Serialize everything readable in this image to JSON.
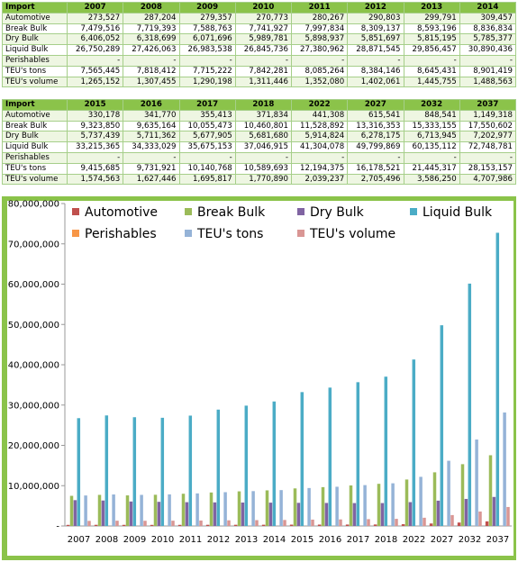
{
  "tables": [
    {
      "header": "Import",
      "years": [
        "2007",
        "2008",
        "2009",
        "2010",
        "2011",
        "2012",
        "2013",
        "2014"
      ],
      "rows": [
        {
          "label": "Automotive",
          "values": [
            "273,527",
            "287,204",
            "279,357",
            "270,773",
            "280,267",
            "290,803",
            "299,791",
            "309,457"
          ]
        },
        {
          "label": "Break Bulk",
          "values": [
            "7,479,516",
            "7,719,393",
            "7,588,763",
            "7,741,927",
            "7,997,834",
            "8,309,137",
            "8,593,196",
            "8,836,834"
          ]
        },
        {
          "label": "Dry Bulk",
          "values": [
            "6,406,052",
            "6,318,699",
            "6,071,696",
            "5,989,781",
            "5,898,937",
            "5,851,697",
            "5,815,195",
            "5,785,377"
          ]
        },
        {
          "label": "Liquid Bulk",
          "values": [
            "26,750,289",
            "27,426,063",
            "26,983,538",
            "26,845,736",
            "27,380,962",
            "28,871,545",
            "29,856,457",
            "30,890,436"
          ]
        },
        {
          "label": "Perishables",
          "values": [
            "-",
            "-",
            "-",
            "-",
            "-",
            "-",
            "-",
            "-"
          ]
        },
        {
          "label": "TEU's tons",
          "values": [
            "7,565,445",
            "7,818,412",
            "7,715,222",
            "7,842,281",
            "8,085,264",
            "8,384,146",
            "8,645,431",
            "8,901,419"
          ]
        },
        {
          "label": "TEU's volume",
          "values": [
            "1,265,152",
            "1,307,455",
            "1,290,198",
            "1,311,446",
            "1,352,080",
            "1,402,061",
            "1,445,755",
            "1,488,563"
          ]
        }
      ]
    },
    {
      "header": "Import",
      "years": [
        "2015",
        "2016",
        "2017",
        "2018",
        "2022",
        "2027",
        "2032",
        "2037"
      ],
      "rows": [
        {
          "label": "Automotive",
          "values": [
            "330,178",
            "341,770",
            "355,413",
            "371,834",
            "441,308",
            "615,541",
            "848,541",
            "1,149,318"
          ]
        },
        {
          "label": "Break Bulk",
          "values": [
            "9,323,850",
            "9,635,164",
            "10,055,473",
            "10,460,801",
            "11,528,892",
            "13,316,353",
            "15,333,155",
            "17,550,602"
          ]
        },
        {
          "label": "Dry Bulk",
          "values": [
            "5,737,439",
            "5,711,362",
            "5,677,905",
            "5,681,680",
            "5,914,824",
            "6,278,175",
            "6,713,945",
            "7,202,977"
          ]
        },
        {
          "label": "Liquid Bulk",
          "values": [
            "33,215,365",
            "34,333,029",
            "35,675,153",
            "37,046,915",
            "41,304,078",
            "49,799,869",
            "60,135,112",
            "72,748,781"
          ]
        },
        {
          "label": "Perishables",
          "values": [
            "-",
            "-",
            "-",
            "-",
            "-",
            "-",
            "-",
            "-"
          ]
        },
        {
          "label": "TEU's tons",
          "values": [
            "9,415,685",
            "9,731,921",
            "10,140,768",
            "10,589,693",
            "12,194,375",
            "16,178,521",
            "21,445,317",
            "28,153,157"
          ]
        },
        {
          "label": "TEU's volume",
          "values": [
            "1,574,563",
            "1,627,446",
            "1,695,817",
            "1,770,890",
            "2,039,237",
            "2,705,496",
            "3,586,250",
            "4,707,986"
          ]
        }
      ]
    }
  ],
  "chart_data": {
    "type": "bar",
    "categories": [
      "2007",
      "2008",
      "2009",
      "2010",
      "2011",
      "2012",
      "2013",
      "2014",
      "2015",
      "2016",
      "2017",
      "2018",
      "2022",
      "2027",
      "2032",
      "2037"
    ],
    "ylim": [
      0,
      80000000
    ],
    "yticks": [
      0,
      10000000,
      20000000,
      30000000,
      40000000,
      50000000,
      60000000,
      70000000,
      80000000
    ],
    "ytick_labels": [
      "-",
      "10,000,000",
      "20,000,000",
      "30,000,000",
      "40,000,000",
      "50,000,000",
      "60,000,000",
      "70,000,000",
      "80,000,000"
    ],
    "legend_position": "top",
    "series": [
      {
        "name": "Automotive",
        "color": "#c0504d",
        "values": [
          273527,
          287204,
          279357,
          270773,
          280267,
          290803,
          299791,
          309457,
          330178,
          341770,
          355413,
          371834,
          441308,
          615541,
          848541,
          1149318
        ]
      },
      {
        "name": "Break Bulk",
        "color": "#9bbb59",
        "values": [
          7479516,
          7719393,
          7588763,
          7741927,
          7997834,
          8309137,
          8593196,
          8836834,
          9323850,
          9635164,
          10055473,
          10460801,
          11528892,
          13316353,
          15333155,
          17550602
        ]
      },
      {
        "name": "Dry Bulk",
        "color": "#8064a2",
        "values": [
          6406052,
          6318699,
          6071696,
          5989781,
          5898937,
          5851697,
          5815195,
          5785377,
          5737439,
          5711362,
          5677905,
          5681680,
          5914824,
          6278175,
          6713945,
          7202977
        ]
      },
      {
        "name": "Liquid Bulk",
        "color": "#4bacc6",
        "values": [
          26750289,
          27426063,
          26983538,
          26845736,
          27380962,
          28871545,
          29856457,
          30890436,
          33215365,
          34333029,
          35675153,
          37046915,
          41304078,
          49799869,
          60135112,
          72748781
        ]
      },
      {
        "name": "Perishables",
        "color": "#f79646",
        "values": [
          0,
          0,
          0,
          0,
          0,
          0,
          0,
          0,
          0,
          0,
          0,
          0,
          0,
          0,
          0,
          0
        ]
      },
      {
        "name": "TEU's tons",
        "color": "#95b3d7",
        "values": [
          7565445,
          7818412,
          7715222,
          7842281,
          8085264,
          8384146,
          8645431,
          8901419,
          9415685,
          9731921,
          10140768,
          10589693,
          12194375,
          16178521,
          21445317,
          28153157
        ]
      },
      {
        "name": "TEU's volume",
        "color": "#d99694",
        "values": [
          1265152,
          1307455,
          1290198,
          1311446,
          1352080,
          1402061,
          1445755,
          1488563,
          1574563,
          1627446,
          1695817,
          1770890,
          2039237,
          2705496,
          3586250,
          4707986
        ]
      }
    ]
  }
}
